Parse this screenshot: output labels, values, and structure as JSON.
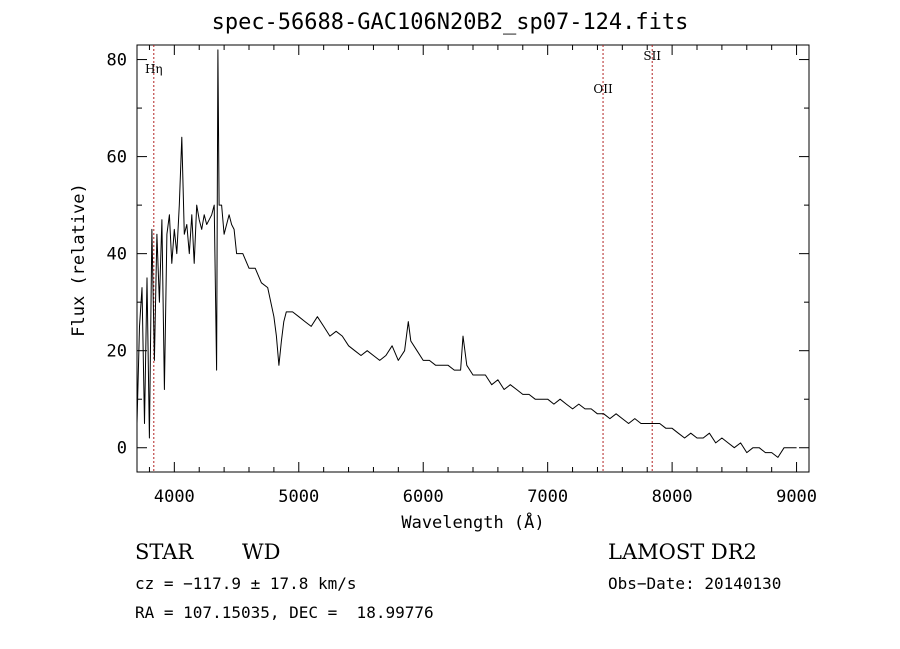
{
  "chart_data": {
    "type": "line",
    "title": "spec-56688-GAC106N20B2_sp07-124.fits",
    "xlabel": "Wavelength (Å)",
    "ylabel": "Flux (relative)",
    "xlim": [
      3700,
      9100
    ],
    "ylim": [
      -5,
      83
    ],
    "xticks": [
      4000,
      5000,
      6000,
      7000,
      8000,
      9000
    ],
    "yticks": [
      0,
      20,
      40,
      60,
      80
    ],
    "grid": false,
    "line_color": "#000000",
    "marker_color": "#b22222",
    "lines": [
      {
        "label": "Hη",
        "wavelength": 3835
      },
      {
        "label": "OII",
        "wavelength": 7445
      },
      {
        "label": "SII",
        "wavelength": 7840
      }
    ],
    "series": [
      {
        "x": [
          3700,
          3720,
          3740,
          3760,
          3780,
          3800,
          3820,
          3840,
          3860,
          3880,
          3900,
          3920,
          3940,
          3960,
          3980,
          4000,
          4020,
          4040,
          4060,
          4080,
          4100,
          4120,
          4140,
          4160,
          4180,
          4200,
          4220,
          4240,
          4260,
          4280,
          4300,
          4320,
          4340,
          4350,
          4360,
          4380,
          4400,
          4420,
          4440,
          4460,
          4480,
          4500,
          4550,
          4600,
          4650,
          4700,
          4750,
          4800,
          4820,
          4840,
          4860,
          4880,
          4900,
          4950,
          5000,
          5050,
          5100,
          5150,
          5200,
          5250,
          5300,
          5350,
          5400,
          5450,
          5500,
          5550,
          5600,
          5650,
          5700,
          5750,
          5800,
          5850,
          5880,
          5900,
          5950,
          6000,
          6050,
          6100,
          6150,
          6200,
          6250,
          6300,
          6320,
          6350,
          6400,
          6450,
          6500,
          6550,
          6600,
          6650,
          6700,
          6750,
          6800,
          6850,
          6900,
          6950,
          7000,
          7050,
          7100,
          7150,
          7200,
          7250,
          7300,
          7350,
          7400,
          7450,
          7500,
          7550,
          7600,
          7650,
          7700,
          7750,
          7800,
          7850,
          7900,
          7950,
          8000,
          8050,
          8100,
          8150,
          8200,
          8250,
          8300,
          8350,
          8400,
          8450,
          8500,
          8550,
          8600,
          8650,
          8700,
          8750,
          8800,
          8850,
          8900,
          8950,
          9000
        ],
        "y": [
          5,
          25,
          33,
          5,
          35,
          2,
          45,
          18,
          44,
          30,
          47,
          12,
          44,
          48,
          38,
          45,
          40,
          50,
          64,
          44,
          46,
          40,
          48,
          38,
          50,
          47,
          45,
          48,
          46,
          47,
          48,
          50,
          16,
          82,
          50,
          50,
          44,
          46,
          48,
          46,
          45,
          40,
          40,
          37,
          37,
          34,
          33,
          27,
          23,
          17,
          22,
          26,
          28,
          28,
          27,
          26,
          25,
          27,
          25,
          23,
          24,
          23,
          21,
          20,
          19,
          20,
          19,
          18,
          19,
          21,
          18,
          20,
          26,
          22,
          20,
          18,
          18,
          17,
          17,
          17,
          16,
          16,
          23,
          17,
          15,
          15,
          15,
          13,
          14,
          12,
          13,
          12,
          11,
          11,
          10,
          10,
          10,
          9,
          10,
          9,
          8,
          9,
          8,
          8,
          7,
          7,
          6,
          7,
          6,
          5,
          6,
          5,
          5,
          5,
          5,
          4,
          4,
          3,
          2,
          3,
          2,
          2,
          3,
          1,
          2,
          1,
          0,
          1,
          -1,
          0,
          0,
          -1,
          -1,
          -2,
          0,
          0,
          0
        ]
      }
    ]
  },
  "info": {
    "object_class": "STAR",
    "subclass": "WD",
    "survey": "LAMOST DR2",
    "cz": "cz = −117.9 ± 17.8 km/s",
    "obs_date": "Obs−Date: 20140130",
    "coords": "RA = 107.15035, DEC =  18.99776"
  }
}
